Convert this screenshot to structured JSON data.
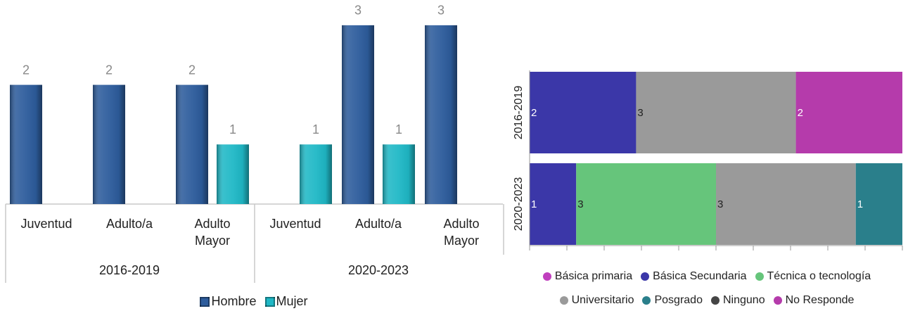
{
  "chart_data": [
    {
      "type": "grouped_bar",
      "categories": [
        "Juventud",
        "Adulto/a",
        "Adulto Mayor",
        "Juventud",
        "Adulto/a",
        "Adulto Mayor"
      ],
      "category_groups": [
        "2016-2019",
        "2020-2023"
      ],
      "series": [
        {
          "name": "Hombre",
          "color": "#2d5c9c",
          "values": [
            2,
            2,
            2,
            null,
            3,
            3
          ]
        },
        {
          "name": "Mujer",
          "color": "#1fb8c6",
          "values": [
            null,
            null,
            1,
            1,
            1,
            null
          ]
        }
      ],
      "ylim": [
        0,
        3.4
      ],
      "legend": "bottom"
    },
    {
      "type": "stacked_percent_hbar",
      "categories": [
        "2016-2019",
        "2020-2023"
      ],
      "series": [
        {
          "name": "Básica primaria",
          "color": "#c03fbe",
          "values": [
            null,
            null
          ]
        },
        {
          "name": "Básica Secundaria",
          "color": "#3b37a8",
          "values": [
            2,
            1
          ]
        },
        {
          "name": "Técnica o tecnología",
          "color": "#66c57b",
          "values": [
            null,
            3
          ]
        },
        {
          "name": "Universitario",
          "color": "#9a9a9a",
          "values": [
            3,
            3
          ]
        },
        {
          "name": "Posgrado",
          "color": "#2a7f8b",
          "values": [
            null,
            1
          ]
        },
        {
          "name": "Ninguno",
          "color": "#454545",
          "values": [
            null,
            null
          ]
        },
        {
          "name": "No Responde",
          "color": "#b53bab",
          "values": [
            2,
            null
          ]
        }
      ],
      "xlim": [
        0,
        100
      ],
      "xticks": [
        0,
        10,
        20,
        30,
        40,
        50,
        60,
        70,
        80,
        90,
        100
      ],
      "legend": "bottom"
    }
  ]
}
